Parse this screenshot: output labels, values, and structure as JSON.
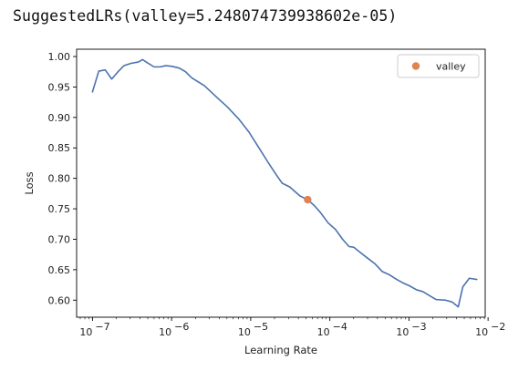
{
  "output": {
    "text": "SuggestedLRs(valley=5.248074739938602e-05)"
  },
  "colors": {
    "line": "#4c72b0",
    "marker": "#dd8452",
    "axis": "#000000",
    "legend_border": "#cccccc"
  },
  "chart_data": {
    "type": "line",
    "xlabel": "Learning Rate",
    "ylabel": "Loss",
    "xscale": "log",
    "xlim": [
      6.3e-08,
      0.0092
    ],
    "ylim": [
      0.572,
      1.012
    ],
    "grid": false,
    "legend": {
      "position": "top-right",
      "entries": [
        "valley"
      ]
    },
    "x_ticks": [
      {
        "value": 1e-07,
        "base": "10",
        "exp": "−7"
      },
      {
        "value": 1e-06,
        "base": "10",
        "exp": "−6"
      },
      {
        "value": 1e-05,
        "base": "10",
        "exp": "−5"
      },
      {
        "value": 0.0001,
        "base": "10",
        "exp": "−4"
      },
      {
        "value": 0.001,
        "base": "10",
        "exp": "−3"
      },
      {
        "value": 0.01,
        "base": "10",
        "exp": "−2"
      }
    ],
    "y_ticks": [
      {
        "value": 0.6,
        "label": "0.60"
      },
      {
        "value": 0.65,
        "label": "0.65"
      },
      {
        "value": 0.7,
        "label": "0.70"
      },
      {
        "value": 0.75,
        "label": "0.75"
      },
      {
        "value": 0.8,
        "label": "0.80"
      },
      {
        "value": 0.85,
        "label": "0.85"
      },
      {
        "value": 0.9,
        "label": "0.90"
      },
      {
        "value": 0.95,
        "label": "0.95"
      },
      {
        "value": 1.0,
        "label": "1.00"
      }
    ],
    "series": [
      {
        "points": [
          [
            1e-07,
            0.942
          ],
          [
            1.2e-07,
            0.976
          ],
          [
            1.45e-07,
            0.978
          ],
          [
            1.75e-07,
            0.963
          ],
          [
            2.1e-07,
            0.975
          ],
          [
            2.5e-07,
            0.985
          ],
          [
            3.1e-07,
            0.989
          ],
          [
            3.8e-07,
            0.991
          ],
          [
            4.3e-07,
            0.995
          ],
          [
            4.9e-07,
            0.99
          ],
          [
            6e-07,
            0.983
          ],
          [
            7.2e-07,
            0.983
          ],
          [
            8.4e-07,
            0.985
          ],
          [
            1e-06,
            0.984
          ],
          [
            1.25e-06,
            0.981
          ],
          [
            1.5e-06,
            0.975
          ],
          [
            1.8e-06,
            0.965
          ],
          [
            2.6e-06,
            0.952
          ],
          [
            3.8e-06,
            0.932
          ],
          [
            5e-06,
            0.918
          ],
          [
            7e-06,
            0.898
          ],
          [
            9.5e-06,
            0.876
          ],
          [
            1.3e-05,
            0.848
          ],
          [
            1.7e-05,
            0.824
          ],
          [
            2.1e-05,
            0.806
          ],
          [
            2.5e-05,
            0.792
          ],
          [
            3.1e-05,
            0.786
          ],
          [
            4.2e-05,
            0.771
          ],
          [
            5.248074739938602e-05,
            0.765
          ],
          [
            6.4e-05,
            0.755
          ],
          [
            7.6e-05,
            0.744
          ],
          [
            9.5e-05,
            0.727
          ],
          [
            0.000118,
            0.716
          ],
          [
            0.000145,
            0.7
          ],
          [
            0.000175,
            0.688
          ],
          [
            0.0002,
            0.687
          ],
          [
            0.00025,
            0.677
          ],
          [
            0.0003,
            0.669
          ],
          [
            0.00037,
            0.66
          ],
          [
            0.00046,
            0.647
          ],
          [
            0.00056,
            0.642
          ],
          [
            0.0007,
            0.634
          ],
          [
            0.00085,
            0.628
          ],
          [
            0.001,
            0.624
          ],
          [
            0.00125,
            0.617
          ],
          [
            0.0015,
            0.614
          ],
          [
            0.0019,
            0.606
          ],
          [
            0.0022,
            0.601
          ],
          [
            0.0029,
            0.6
          ],
          [
            0.0035,
            0.597
          ],
          [
            0.0042,
            0.589
          ],
          [
            0.0048,
            0.622
          ],
          [
            0.0058,
            0.636
          ],
          [
            0.0072,
            0.634
          ]
        ]
      }
    ],
    "markers": [
      {
        "name": "valley",
        "x": 5.248074739938602e-05,
        "y": 0.765
      }
    ]
  }
}
